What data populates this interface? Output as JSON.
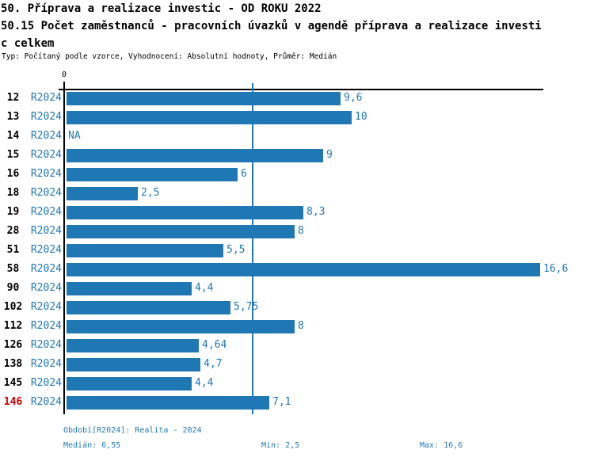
{
  "header": {
    "title_line1": "50. Příprava a realizace investic - OD ROKU 2022",
    "title_line2": "50.15 Počet zaměstnanců - pracovních úvazků v agendě příprava a realizace investi",
    "title_line3": "c celkem",
    "meta": "Typ: Počítaný podle vzorce, Vyhodnocení: Absolutní hodnoty, Průměr: Medián"
  },
  "chart_data": {
    "type": "bar",
    "orientation": "horizontal",
    "title": "50.15 Počet zaměstnanců - pracovních úvazků v agendě příprava a realizace investic celkem",
    "categories": [
      "12",
      "13",
      "14",
      "15",
      "16",
      "18",
      "19",
      "28",
      "51",
      "58",
      "90",
      "102",
      "112",
      "126",
      "138",
      "145",
      "146"
    ],
    "period_label": "R2024",
    "values": [
      9.6,
      10,
      null,
      9,
      6,
      2.5,
      8.3,
      8,
      5.5,
      16.6,
      4.4,
      5.75,
      8,
      4.64,
      4.7,
      4.4,
      7.1
    ],
    "value_labels": [
      "9,6",
      "10",
      "NA",
      "9",
      "6",
      "2,5",
      "8,3",
      "8",
      "5,5",
      "16,6",
      "4,4",
      "5,75",
      "8",
      "4,64",
      "4,7",
      "4,4",
      "7,1"
    ],
    "highlighted_category": "146",
    "zero_tick_label": "0",
    "xlim": [
      0,
      16.75
    ],
    "grid": false,
    "median_line_value": 6.55,
    "stats": {
      "median": 6.55,
      "min": 2.5,
      "max": 16.6
    },
    "bar_color": "#1f77b4",
    "median_line_color": "#1f77b4",
    "highlight_color": "#cc0000"
  },
  "footer": {
    "period": "Období[R2024]: Realita - 2024",
    "median": "Medián: 6,55",
    "min": "Min: 2,5",
    "max": "Max: 16,6"
  }
}
